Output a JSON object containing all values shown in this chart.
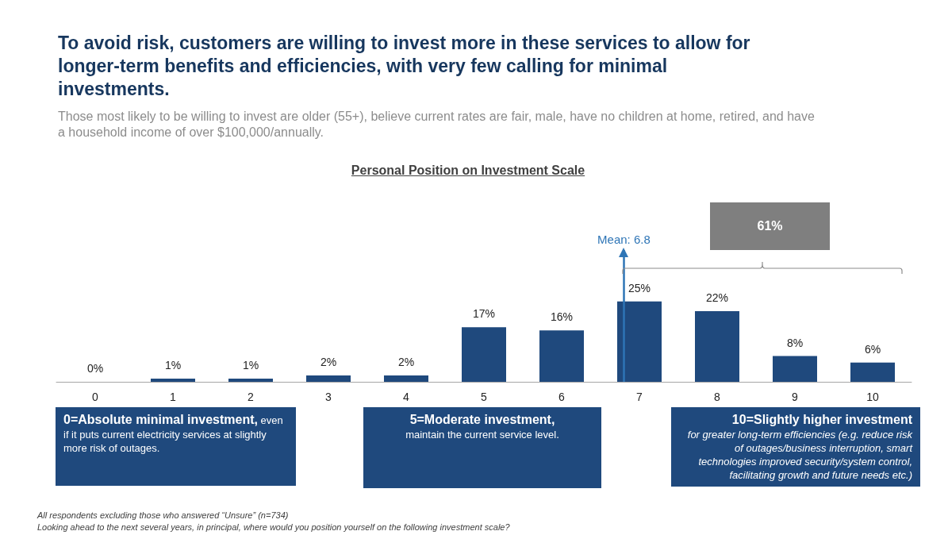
{
  "chart_data": {
    "type": "bar",
    "title": "To avoid risk, customers are willing to invest more in these services to allow for longer-term benefits and efficiencies, with very few calling for minimal investments.",
    "subtitle": "Those most likely to be willing to invest are older (55+), believe current rates are fair, male, have no children at home, retired, and have a household income of over $100,000/annually.",
    "x": [
      0,
      1,
      2,
      3,
      4,
      5,
      6,
      7,
      8,
      9,
      10
    ],
    "xlim": [
      -0.5,
      10.5
    ],
    "xticks": [
      0,
      1,
      2,
      3,
      4,
      5,
      6,
      7,
      8,
      9,
      10
    ],
    "values": [
      0,
      1,
      1,
      2,
      2,
      17,
      16,
      25,
      22,
      8,
      6
    ],
    "value_labels": [
      "0%",
      "1%",
      "1%",
      "2%",
      "2%",
      "17%",
      "16%",
      "25%",
      "22%",
      "8%",
      "6%"
    ],
    "color": "#1f497d",
    "tick_labels": "x",
    "grid": false,
    "ref_lines": [
      {
        "axis": "x",
        "value": 6.8,
        "label": "Mean: 6.8",
        "color": "#2e75b6"
      }
    ],
    "annotations": [
      "Personal Position on Investment Scale",
      "61%",
      "0=Absolute minimal investment,",
      "even if it puts current electricity services at slightly more risk of outages.",
      "5=Moderate investment,",
      "maintain the current service level.",
      "10=Slightly higher investment",
      "for greater long-term efficiencies (e.g. reduce risk of outages/business interruption, smart technologies improved security/system control, facilitating growth and future needs etc.)",
      "All respondents excluding those who answered “Unsure” (n=734)",
      "Looking ahead to the next several years, in principal, where would you position yourself on the following investment scale?"
    ]
  }
}
